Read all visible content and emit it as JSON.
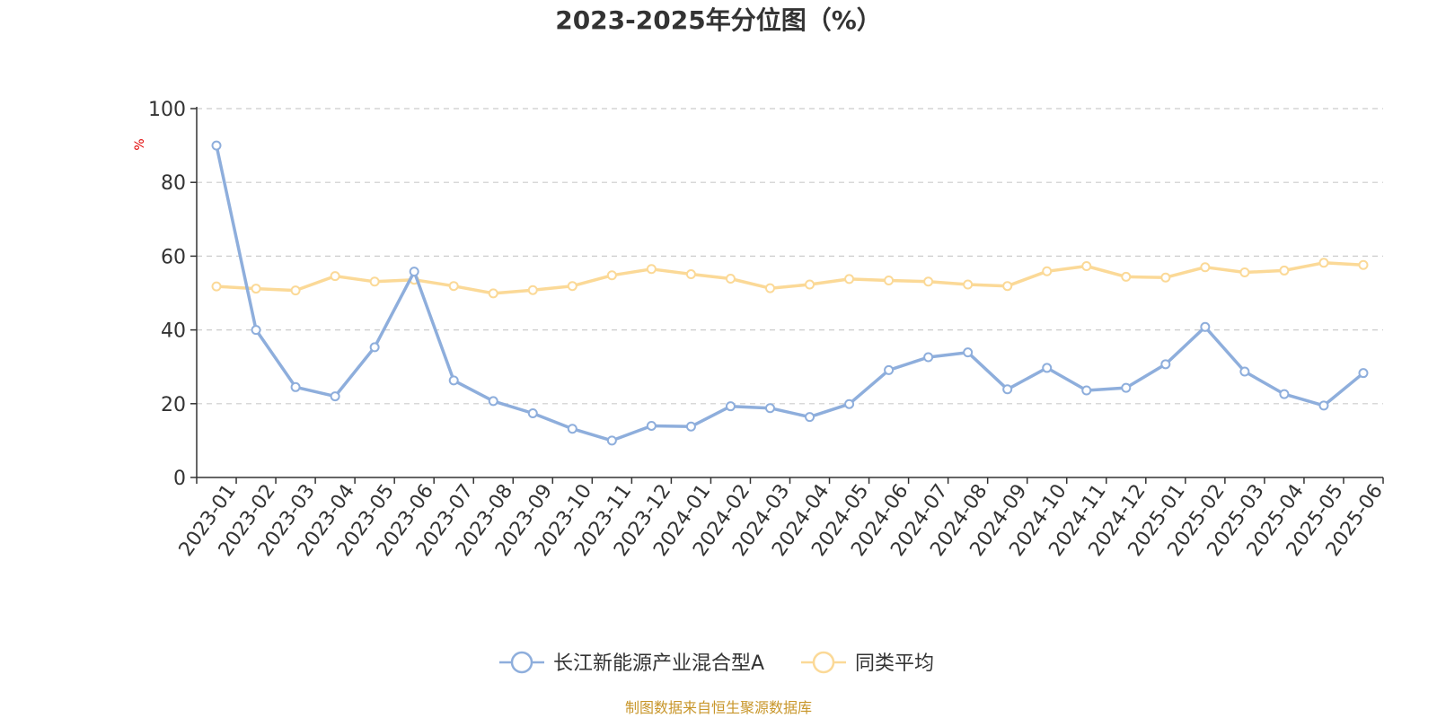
{
  "chart_data": {
    "type": "line",
    "title": "2023-2025年分位图（%）",
    "ylabel": "%",
    "ylim": [
      0,
      100
    ],
    "yticks": [
      0,
      20,
      40,
      60,
      80,
      100
    ],
    "grid": true,
    "legend_position": "bottom-center",
    "categories": [
      "2023-01",
      "2023-02",
      "2023-03",
      "2023-04",
      "2023-05",
      "2023-06",
      "2023-07",
      "2023-08",
      "2023-09",
      "2023-10",
      "2023-11",
      "2023-12",
      "2024-01",
      "2024-02",
      "2024-03",
      "2024-04",
      "2024-05",
      "2024-06",
      "2024-07",
      "2024-08",
      "2024-09",
      "2024-10",
      "2024-11",
      "2024-12",
      "2025-01",
      "2025-02",
      "2025-03",
      "2025-04",
      "2025-05",
      "2025-06"
    ],
    "series": [
      {
        "name": "长江新能源产业混合型A",
        "color": "#8eaedc",
        "values": [
          90.0,
          40.0,
          24.5,
          22.0,
          35.3,
          55.8,
          26.3,
          20.7,
          17.4,
          13.2,
          10.0,
          14.0,
          13.8,
          19.3,
          18.8,
          16.4,
          19.9,
          29.1,
          32.6,
          33.9,
          23.9,
          29.7,
          23.6,
          24.3,
          30.7,
          40.8,
          28.7,
          22.6,
          19.5,
          28.3
        ]
      },
      {
        "name": "同类平均",
        "color": "#fbd997",
        "values": [
          51.8,
          51.2,
          50.7,
          54.6,
          53.1,
          53.6,
          51.9,
          49.9,
          50.8,
          51.9,
          54.8,
          56.5,
          55.1,
          53.9,
          51.3,
          52.3,
          53.8,
          53.4,
          53.1,
          52.3,
          51.9,
          55.9,
          57.3,
          54.4,
          54.2,
          57.0,
          55.6,
          56.1,
          58.2,
          57.6
        ]
      }
    ]
  },
  "source_note": "制图数据来自恒生聚源数据库"
}
